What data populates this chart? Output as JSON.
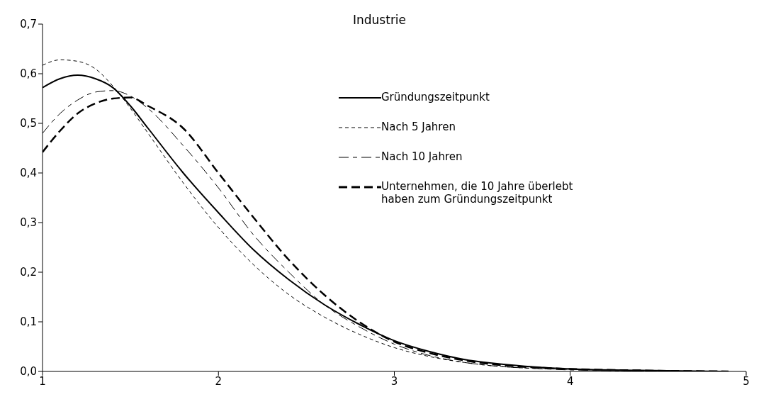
{
  "chart_data": {
    "type": "line",
    "title": "Industrie",
    "xlim": [
      1,
      5
    ],
    "xticks": [
      1,
      2,
      3,
      4,
      5
    ],
    "ylim": [
      0,
      0.7
    ],
    "yticks": [
      {
        "value": 0,
        "label": "0,0"
      },
      {
        "value": 0.1,
        "label": "0,1"
      },
      {
        "value": 0.2,
        "label": "0,2"
      },
      {
        "value": 0.3,
        "label": "0,3"
      },
      {
        "value": 0.4,
        "label": "0,4"
      },
      {
        "value": 0.5,
        "label": "0,5"
      },
      {
        "value": 0.6,
        "label": "0,6"
      },
      {
        "value": 0.7,
        "label": "0,7"
      }
    ],
    "legend": "top right",
    "marker": "none",
    "x": [
      1,
      1.1,
      1.2,
      1.3,
      1.4,
      1.5,
      1.6,
      1.8,
      2,
      2.2,
      2.4,
      2.6,
      2.8,
      3,
      3.2,
      3.4,
      3.6,
      3.8,
      4,
      4.4,
      4.9
    ],
    "series": [
      {
        "name": "Gründungszeitpunkt",
        "color": "#000000",
        "line_style": "solid",
        "values": [
          0.572,
          0.59,
          0.597,
          0.59,
          0.572,
          0.535,
          0.49,
          0.4,
          0.32,
          0.245,
          0.185,
          0.135,
          0.095,
          0.062,
          0.04,
          0.024,
          0.015,
          0.009,
          0.005,
          0.002,
          0
        ]
      },
      {
        "name": "Nach 5 Jahren",
        "color": "#000000",
        "line_style": "dashed",
        "values": [
          0.617,
          0.628,
          0.625,
          0.61,
          0.575,
          0.53,
          0.48,
          0.38,
          0.29,
          0.215,
          0.155,
          0.11,
          0.075,
          0.048,
          0.03,
          0.018,
          0.01,
          0.006,
          0.004,
          0.001,
          0
        ]
      },
      {
        "name": "Nach 10 Jahren",
        "color": "#000000",
        "line_style": "dashed",
        "values": [
          0.48,
          0.52,
          0.547,
          0.563,
          0.566,
          0.555,
          0.53,
          0.455,
          0.37,
          0.275,
          0.2,
          0.135,
          0.09,
          0.055,
          0.032,
          0.018,
          0.01,
          0.006,
          0.003,
          0.001,
          0
        ]
      },
      {
        "name": "Unternehmen, die 10 Jahre überlebt haben zum Gründungszeitpunkt",
        "color": "#000000",
        "line_style": "dashed",
        "values": [
          0.442,
          0.485,
          0.52,
          0.54,
          0.55,
          0.552,
          0.535,
          0.49,
          0.4,
          0.31,
          0.225,
          0.155,
          0.1,
          0.06,
          0.037,
          0.022,
          0.013,
          0.008,
          0.005,
          0.002,
          0
        ]
      }
    ]
  }
}
